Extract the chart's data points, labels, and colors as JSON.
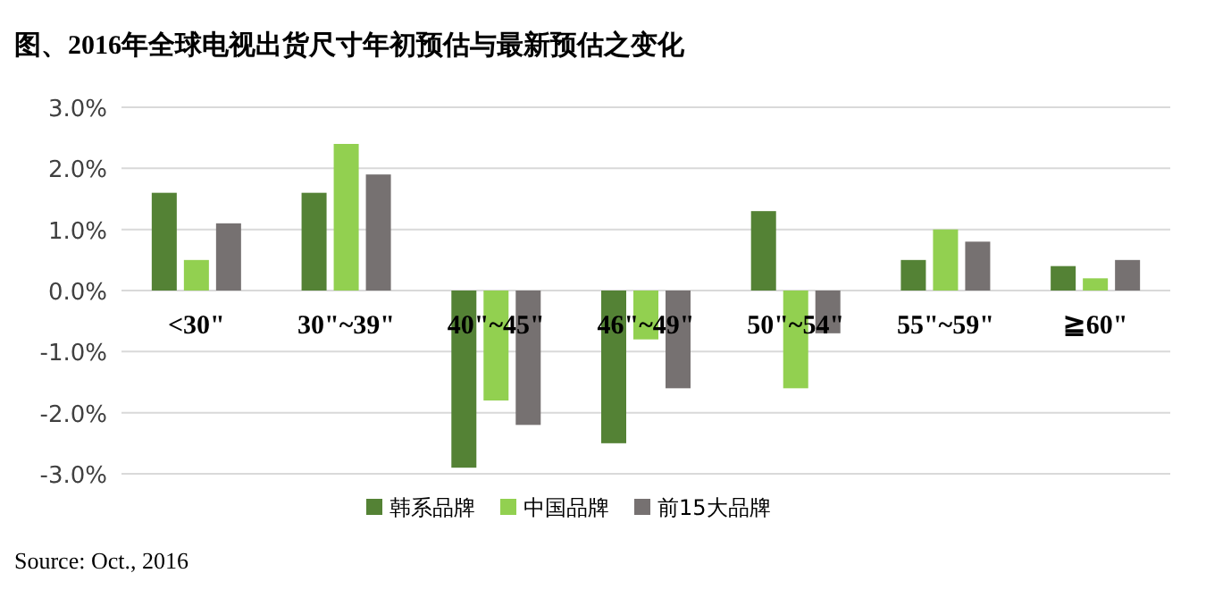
{
  "chart_data": {
    "type": "bar",
    "title": "图、2016年全球电视出货尺寸年初预估与最新预估之变化",
    "categories": [
      "<30\"",
      "30\"~39\"",
      "40\"~45\"",
      "46\"~49\"",
      "50\"~54\"",
      "55\"~59\"",
      "≧60\""
    ],
    "series": [
      {
        "name": "韩系品牌",
        "color": "#548235",
        "values": [
          1.6,
          1.6,
          -2.9,
          -2.5,
          1.3,
          0.5,
          0.4
        ]
      },
      {
        "name": "中国品牌",
        "color": "#92d050",
        "values": [
          0.5,
          2.4,
          -1.8,
          -0.8,
          -1.6,
          1.0,
          0.2
        ]
      },
      {
        "name": "前15大品牌",
        "color": "#767171",
        "values": [
          1.1,
          1.9,
          -2.2,
          -1.6,
          -0.7,
          0.8,
          0.5
        ]
      }
    ],
    "ylim": [
      -3,
      3
    ],
    "yticks": [
      {
        "value": 3,
        "label": "3.0%"
      },
      {
        "value": 2,
        "label": "2.0%"
      },
      {
        "value": 1,
        "label": "1.0%"
      },
      {
        "value": 0,
        "label": "0.0%"
      },
      {
        "value": -1,
        "label": "-1.0%"
      },
      {
        "value": -2,
        "label": "-2.0%"
      },
      {
        "value": -3,
        "label": "-3.0%"
      }
    ],
    "grid": "y",
    "legend": "bottom",
    "annotations": [
      "Source: Oct., 2016"
    ]
  }
}
